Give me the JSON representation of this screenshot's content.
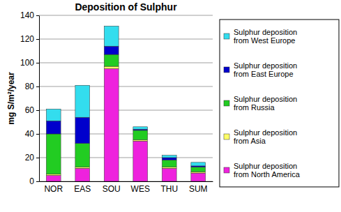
{
  "chart_data": {
    "type": "bar",
    "title": "Deposition of Sulphur",
    "y_label": "mg S/m²/year",
    "categories": [
      "NOR",
      "EAS",
      "SOU",
      "WES",
      "THU",
      "SUM"
    ],
    "series": [
      {
        "name": "Sulphur deposition from North America",
        "color": "#ee22dd",
        "values": [
          5,
          11,
          95,
          34,
          11,
          7
        ]
      },
      {
        "name": "Sulphur deposition from Asia",
        "color": "#ffff66",
        "values": [
          1,
          1,
          2,
          1,
          1,
          1
        ]
      },
      {
        "name": "Sulphur deposition from Russia",
        "color": "#22cc22",
        "values": [
          34,
          20,
          10,
          8,
          6,
          4
        ]
      },
      {
        "name": "Sulphur deposition from East Europe",
        "color": "#0000cc",
        "values": [
          11,
          22,
          7,
          1,
          2,
          1
        ]
      },
      {
        "name": "Sulphur deposition from West Europe",
        "color": "#33ddee",
        "values": [
          10,
          27,
          17,
          2,
          2,
          3
        ]
      }
    ],
    "ylim": [
      0,
      140
    ],
    "yticks": [
      0,
      20,
      40,
      60,
      80,
      100,
      120,
      140
    ],
    "stacked": true,
    "grid": true,
    "legend": "right"
  }
}
